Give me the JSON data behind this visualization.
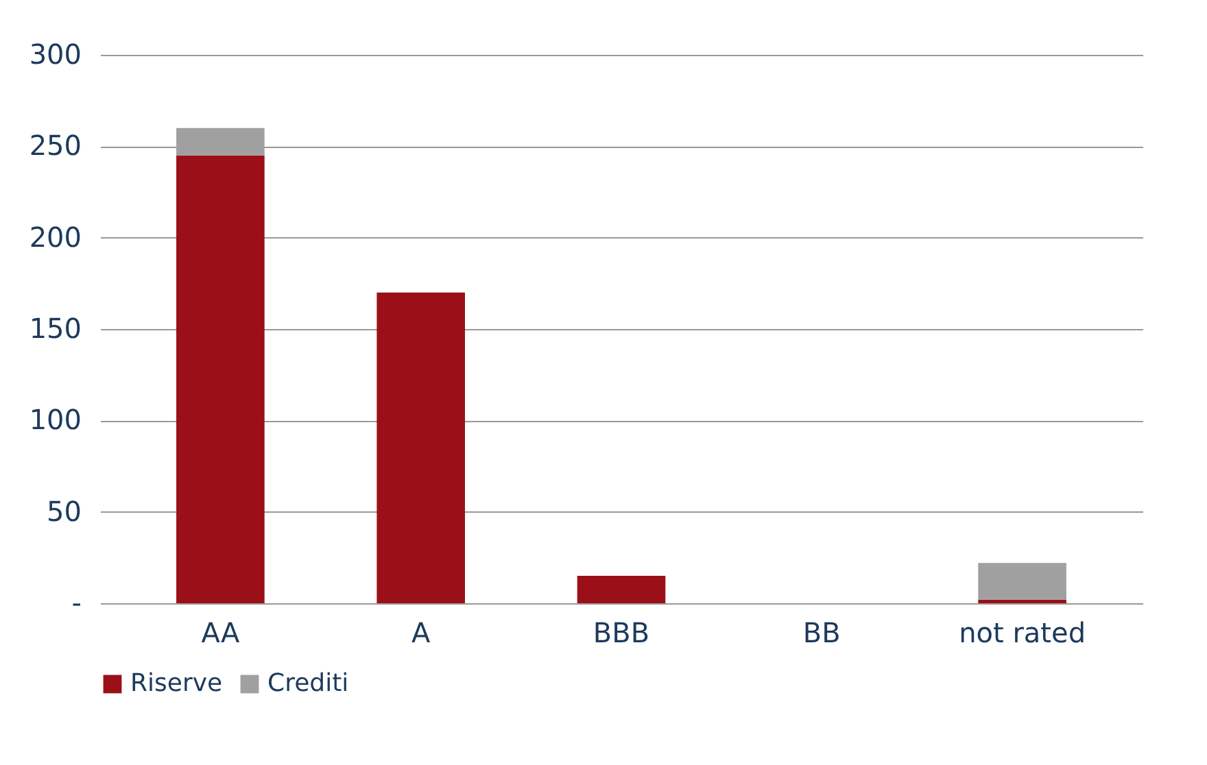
{
  "chart_data": {
    "type": "bar",
    "stacked": true,
    "categories": [
      "AA",
      "A",
      "BBB",
      "BB",
      "not rated"
    ],
    "series": [
      {
        "name": "Riserve",
        "color": "#9b1018",
        "values": [
          245,
          170,
          15,
          0,
          2
        ]
      },
      {
        "name": "Crediti",
        "color": "#a0a0a0",
        "values": [
          15,
          0,
          0,
          0,
          20
        ]
      }
    ],
    "ylim": [
      0,
      300
    ],
    "yticks": [
      {
        "value": 0,
        "label": "-"
      },
      50,
      100,
      150,
      200,
      250,
      300
    ],
    "grid": "y",
    "legend": "bottom"
  }
}
